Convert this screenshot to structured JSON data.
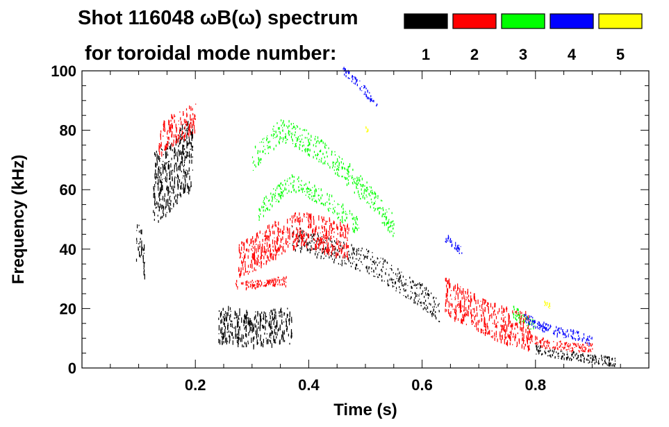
{
  "chart_data": {
    "type": "scatter",
    "title_line1": "Shot 116048 ωB(ω) spectrum",
    "title_line2": "for toroidal mode number:",
    "xlabel": "Time (s)",
    "ylabel": "Frequency (kHz)",
    "xlim": [
      0.0,
      1.0
    ],
    "ylim": [
      0,
      100
    ],
    "xticks": [
      0.2,
      0.4,
      0.6,
      0.8
    ],
    "xtick_labels": [
      "0.2",
      "0.4",
      "0.6",
      "0.8"
    ],
    "yticks": [
      0,
      20,
      40,
      60,
      80,
      100
    ],
    "ytick_labels": [
      "0",
      "20",
      "40",
      "60",
      "80",
      "100"
    ],
    "grid": false,
    "legend_position": "top-right",
    "legend": [
      {
        "label": "1",
        "color": "#000000"
      },
      {
        "label": "2",
        "color": "#ff0000"
      },
      {
        "label": "3",
        "color": "#00ff00"
      },
      {
        "label": "4",
        "color": "#0000ff"
      },
      {
        "label": "5",
        "color": "#ffff00"
      }
    ],
    "series": [
      {
        "name": "1",
        "color": "#000000",
        "ridges": [
          {
            "x": [
              0.095,
              0.1,
              0.105,
              0.11
            ],
            "y": [
              42,
              43,
              40,
              36
            ],
            "spread": 6
          },
          {
            "x": [
              0.125,
              0.14,
              0.16,
              0.18,
              0.195
            ],
            "y": [
              60,
              62,
              65,
              70,
              72
            ],
            "spread": 12
          },
          {
            "x": [
              0.24,
              0.26,
              0.29,
              0.32,
              0.35,
              0.37
            ],
            "y": [
              14,
              14,
              13,
              13,
              14,
              14
            ],
            "spread": 6
          },
          {
            "x": [
              0.37,
              0.4,
              0.45,
              0.5,
              0.53,
              0.56,
              0.6,
              0.63
            ],
            "y": [
              44,
              42,
              39,
              36,
              33,
              29,
              24,
              19
            ],
            "spread": 4
          },
          {
            "x": [
              0.8,
              0.83,
              0.86,
              0.9,
              0.94
            ],
            "y": [
              6,
              5,
              4,
              3,
              2
            ],
            "spread": 1.5
          }
        ]
      },
      {
        "name": "2",
        "color": "#ff0000",
        "ridges": [
          {
            "x": [
              0.135,
              0.15,
              0.17,
              0.19,
              0.2
            ],
            "y": [
              76,
              79,
              81,
              83,
              84
            ],
            "spread": 5
          },
          {
            "x": [
              0.275,
              0.3,
              0.33,
              0.36,
              0.38,
              0.42,
              0.47
            ],
            "y": [
              36,
              38,
              42,
              45,
              47,
              45,
              42
            ],
            "spread": 6
          },
          {
            "x": [
              0.27,
              0.3,
              0.33,
              0.36
            ],
            "y": [
              28,
              28,
              29,
              29
            ],
            "spread": 1.5
          },
          {
            "x": [
              0.64,
              0.68,
              0.72,
              0.75,
              0.79
            ],
            "y": [
              24,
              20,
              16,
              14,
              12
            ],
            "spread": 6
          },
          {
            "x": [
              0.79,
              0.82,
              0.86,
              0.9
            ],
            "y": [
              10,
              8,
              7,
              7
            ],
            "spread": 1.5
          }
        ]
      },
      {
        "name": "3",
        "color": "#00ff00",
        "ridges": [
          {
            "x": [
              0.3,
              0.33,
              0.35,
              0.38,
              0.42,
              0.47,
              0.51,
              0.55
            ],
            "y": [
              70,
              76,
              80,
              78,
              73,
              65,
              57,
              48
            ],
            "spread": 4
          },
          {
            "x": [
              0.31,
              0.34,
              0.37,
              0.4,
              0.44,
              0.49
            ],
            "y": [
              52,
              58,
              62,
              60,
              55,
              47
            ],
            "spread": 3
          },
          {
            "x": [
              0.76,
              0.78,
              0.8
            ],
            "y": [
              19,
              16,
              14
            ],
            "spread": 2
          }
        ]
      },
      {
        "name": "4",
        "color": "#0000ff",
        "ridges": [
          {
            "x": [
              0.46,
              0.48,
              0.5,
              0.52
            ],
            "y": [
              100,
              97,
              93,
              88
            ],
            "spread": 1.5
          },
          {
            "x": [
              0.64,
              0.655,
              0.67
            ],
            "y": [
              44,
              42,
              39
            ],
            "spread": 1.5
          },
          {
            "x": [
              0.78,
              0.81,
              0.84,
              0.87,
              0.9
            ],
            "y": [
              17,
              14,
              12,
              11,
              9
            ],
            "spread": 1.5
          }
        ]
      },
      {
        "name": "5",
        "color": "#ffff00",
        "ridges": [
          {
            "x": [
              0.5,
              0.505
            ],
            "y": [
              80,
              79
            ],
            "spread": 1
          },
          {
            "x": [
              0.815,
              0.825
            ],
            "y": [
              22,
              21
            ],
            "spread": 1
          }
        ]
      }
    ]
  }
}
